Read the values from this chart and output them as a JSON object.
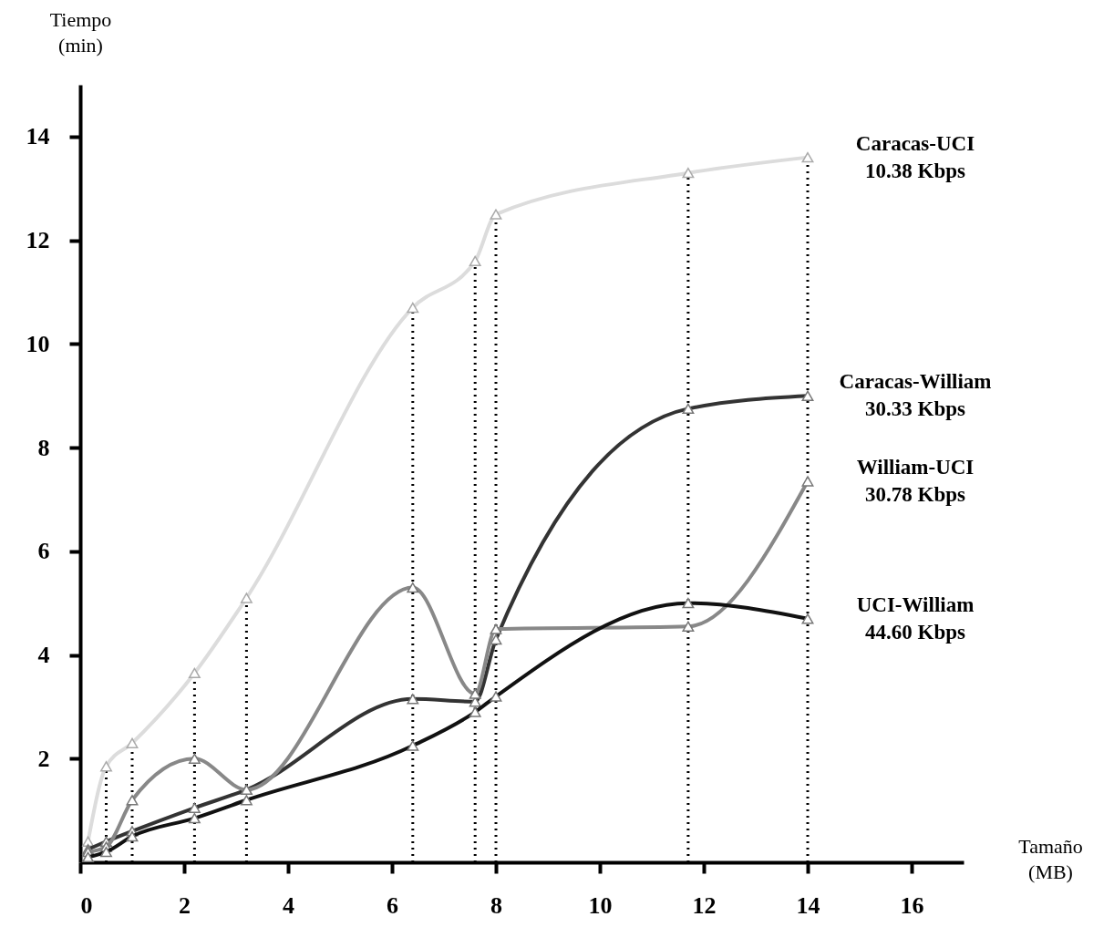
{
  "chart_data": {
    "type": "line",
    "xlabel": "Tamaño\n(MB)",
    "ylabel": "Tiempo\n(min)",
    "x": [
      0.15,
      0.5,
      1,
      2.2,
      3.2,
      6.4,
      7.6,
      8,
      11.7,
      14
    ],
    "series": [
      {
        "name": "Caracas-UCI\n10.38 Kbps",
        "color": "#dcdcdc",
        "values": [
          0.4,
          1.85,
          2.3,
          3.65,
          5.1,
          10.7,
          11.6,
          12.5,
          13.3,
          13.6
        ]
      },
      {
        "name": "Caracas-William\n30.33 Kbps",
        "color": "#333333",
        "values": [
          0.25,
          0.4,
          0.6,
          1.05,
          1.4,
          3.15,
          3.1,
          4.3,
          8.75,
          9.0
        ]
      },
      {
        "name": "William-UCI\n30.78 Kbps",
        "color": "#888888",
        "values": [
          0.2,
          0.3,
          1.2,
          2.0,
          1.4,
          5.3,
          3.25,
          4.5,
          4.55,
          7.35
        ]
      },
      {
        "name": "UCI-William\n44.60 Kbps",
        "color": "#111111",
        "values": [
          0.1,
          0.2,
          0.5,
          0.85,
          1.2,
          2.25,
          2.9,
          3.2,
          5.0,
          4.7
        ]
      }
    ],
    "xlim": [
      0,
      17
    ],
    "ylim": [
      0,
      15
    ],
    "xticks": [
      0,
      2,
      4,
      6,
      8,
      10,
      12,
      14,
      16
    ],
    "yticks": [
      2,
      4,
      6,
      8,
      10,
      12,
      14
    ],
    "marker": "triangle",
    "ref_lines": [
      {
        "axis": "x",
        "value": 0.5,
        "line_style": "dotted"
      },
      {
        "axis": "x",
        "value": 1,
        "line_style": "dotted"
      },
      {
        "axis": "x",
        "value": 2.2,
        "line_style": "dotted"
      },
      {
        "axis": "x",
        "value": 3.2,
        "line_style": "dotted"
      },
      {
        "axis": "x",
        "value": 6.4,
        "line_style": "dotted"
      },
      {
        "axis": "x",
        "value": 7.6,
        "line_style": "dotted"
      },
      {
        "axis": "x",
        "value": 8,
        "line_style": "dotted"
      },
      {
        "axis": "x",
        "value": 11.7,
        "line_style": "dotted"
      },
      {
        "axis": "x",
        "value": 14,
        "line_style": "dotted"
      }
    ]
  }
}
